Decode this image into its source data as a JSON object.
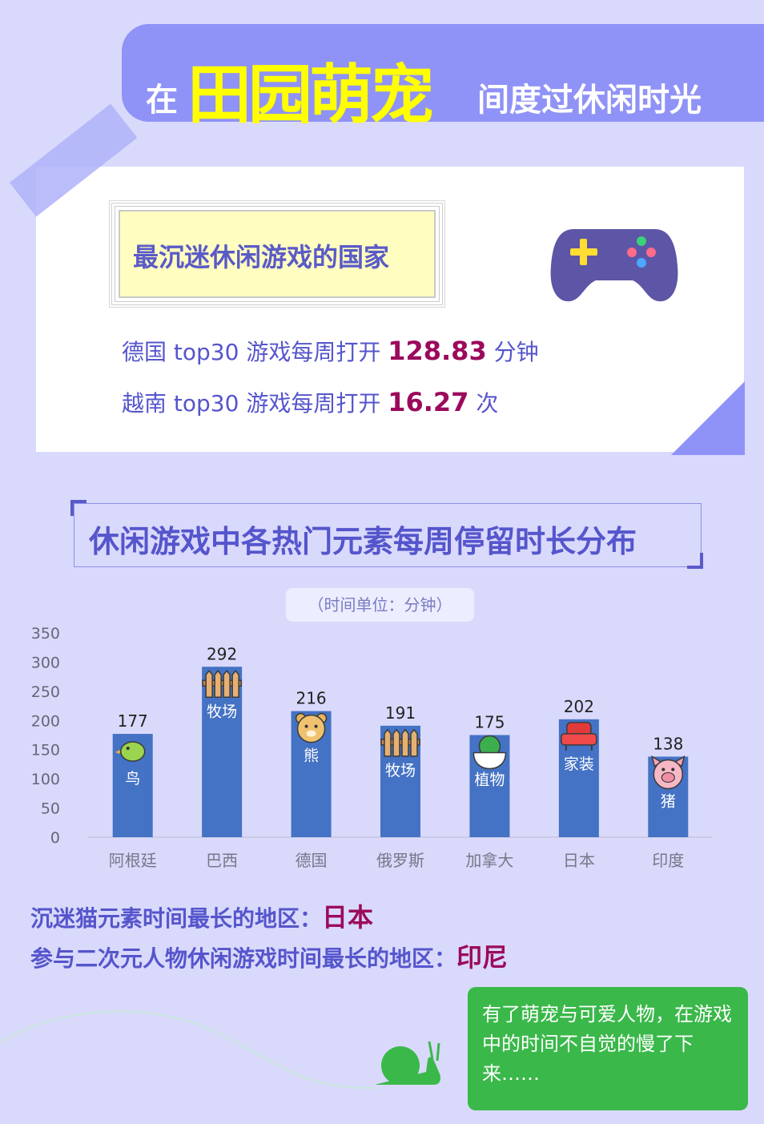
{
  "banner": {
    "pre": "在",
    "highlight": "田园萌宠",
    "post": "间度过休闲时光"
  },
  "card": {
    "heading": "最沉迷休闲游戏的国家",
    "stat1": {
      "prefix": "德国 top30 游戏每周打开 ",
      "value": "128.83",
      "suffix": " 分钟"
    },
    "stat2": {
      "prefix": "越南 top30 游戏每周打开 ",
      "value": "16.27",
      "suffix": " 次"
    },
    "icon": "gamepad-icon"
  },
  "section_title": "休闲游戏中各热门元素每周停留时长分布",
  "unit_label": "（时间单位：分钟）",
  "chart_data": {
    "type": "bar",
    "categories": [
      "阿根廷",
      "巴西",
      "德国",
      "俄罗斯",
      "加拿大",
      "日本",
      "印度"
    ],
    "values": [
      177,
      292,
      216,
      191,
      175,
      202,
      138
    ],
    "elements": [
      "鸟",
      "牧场",
      "熊",
      "牧场",
      "植物",
      "家装",
      "猪"
    ],
    "element_icons": [
      "bird-icon",
      "fence-icon",
      "bear-icon",
      "fence-icon",
      "cactus-icon",
      "armchair-icon",
      "pig-icon"
    ],
    "yticks": [
      0,
      50,
      100,
      150,
      200,
      250,
      300,
      350
    ],
    "ylim": [
      0,
      350
    ],
    "bar_color": "#4472c4",
    "grid": false
  },
  "notes": {
    "cat": {
      "text": "沉迷猫元素时间最长的地区：",
      "value": "日本"
    },
    "anime": {
      "text": "参与二次元人物休闲游戏时间最长的地区：",
      "value": "印尼"
    }
  },
  "bubble_text": "有了萌宠与可爱人物，在游戏中的时间不自觉的慢了下来……",
  "colors": {
    "accent": "#8f92f6",
    "highlight": "#ffff00",
    "value": "#9b0a5c",
    "text": "#5555cc",
    "bubble": "#3ab84a"
  }
}
